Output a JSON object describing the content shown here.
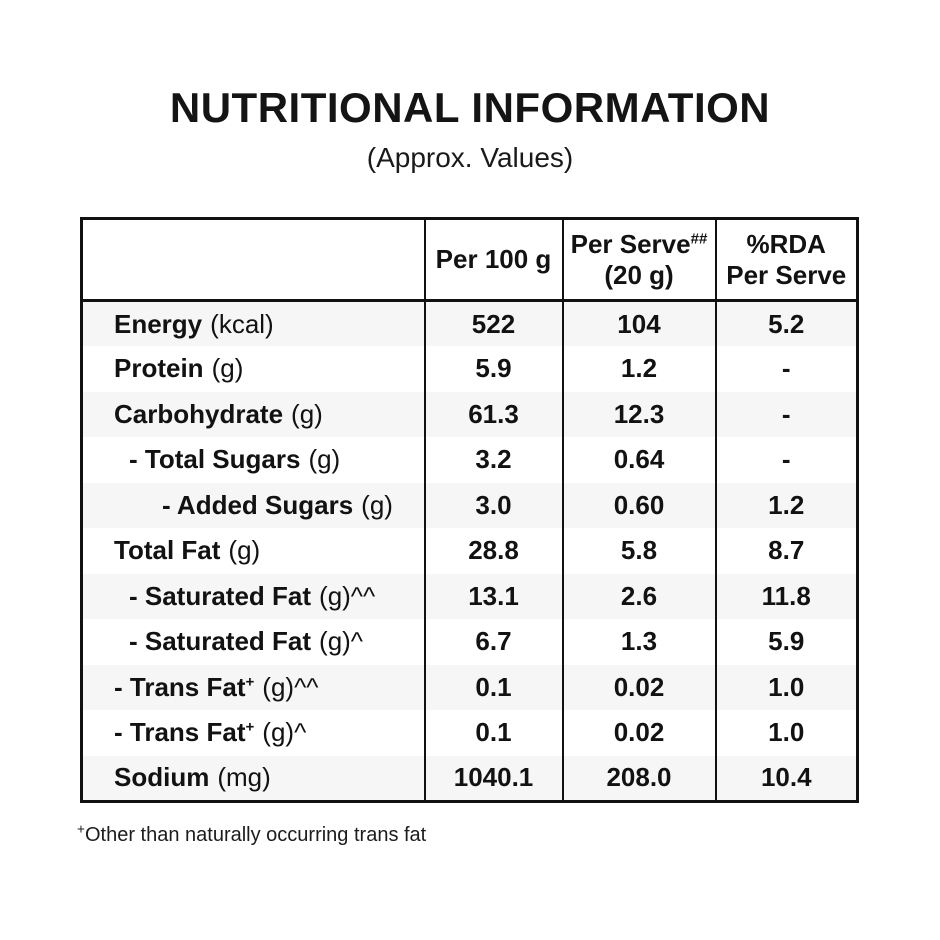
{
  "header": {
    "title": "NUTRITIONAL INFORMATION",
    "subtitle": "(Approx. Values)"
  },
  "table": {
    "columns": [
      {
        "line1": "",
        "sup": "",
        "line2": ""
      },
      {
        "line1": "Per 100 g",
        "sup": "",
        "line2": ""
      },
      {
        "line1": "Per Serve",
        "sup": "##",
        "line2": "(20 g)"
      },
      {
        "line1": "%RDA",
        "sup": "",
        "line2": "Per Serve"
      }
    ],
    "rows": [
      {
        "name": "Energy",
        "name_sup": "",
        "unit": "(kcal)",
        "per_100g": "522",
        "per_serve": "104",
        "rda_per_serve": "5.2"
      },
      {
        "name": "Protein",
        "name_sup": "",
        "unit": "(g)",
        "per_100g": "5.9",
        "per_serve": "1.2",
        "rda_per_serve": "-"
      },
      {
        "name": "Carbohydrate",
        "name_sup": "",
        "unit": "(g)",
        "per_100g": "61.3",
        "per_serve": "12.3",
        "rda_per_serve": "-"
      },
      {
        "name": "- Total Sugars",
        "name_sup": "",
        "unit": "(g)",
        "per_100g": "3.2",
        "per_serve": "0.64",
        "rda_per_serve": "-"
      },
      {
        "name": "- Added Sugars",
        "name_sup": "",
        "unit": "(g)",
        "per_100g": "3.0",
        "per_serve": "0.60",
        "rda_per_serve": "1.2"
      },
      {
        "name": "Total Fat",
        "name_sup": "",
        "unit": "(g)",
        "per_100g": "28.8",
        "per_serve": "5.8",
        "rda_per_serve": "8.7"
      },
      {
        "name": "- Saturated Fat",
        "name_sup": "",
        "unit": "(g)^^",
        "per_100g": "13.1",
        "per_serve": "2.6",
        "rda_per_serve": "11.8"
      },
      {
        "name": "- Saturated Fat",
        "name_sup": "",
        "unit": "(g)^",
        "per_100g": "6.7",
        "per_serve": "1.3",
        "rda_per_serve": "5.9"
      },
      {
        "name": "- Trans Fat",
        "name_sup": "+",
        "unit": "(g)^^",
        "per_100g": "0.1",
        "per_serve": "0.02",
        "rda_per_serve": "1.0"
      },
      {
        "name": "- Trans Fat",
        "name_sup": "+",
        "unit": "(g)^",
        "per_100g": "0.1",
        "per_serve": "0.02",
        "rda_per_serve": "1.0"
      },
      {
        "name": "Sodium",
        "name_sup": "",
        "unit": "(mg)",
        "per_100g": "1040.1",
        "per_serve": "208.0",
        "rda_per_serve": "10.4"
      }
    ]
  },
  "footnote": {
    "sup": "+",
    "text": "Other than naturally occurring trans fat"
  }
}
